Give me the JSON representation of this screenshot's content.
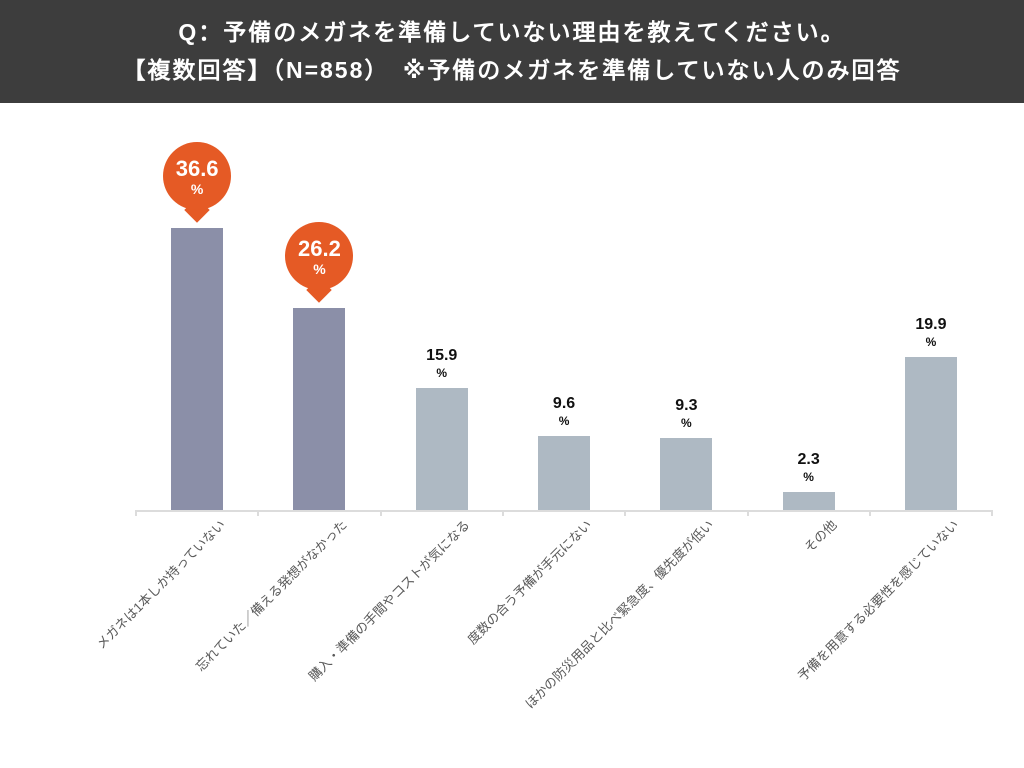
{
  "header": {
    "line1": "Q：予備のメガネを準備していない理由を教えてください。",
    "line2": "【複数回答】（N=858）　※予備のメガネを準備していない人のみ回答"
  },
  "chart_data": {
    "type": "bar",
    "title": "Q：予備のメガネを準備していない理由を教えてください。",
    "subtitle": "【複数回答】（N=858）　※予備のメガネを準備していない人のみ回答",
    "sample_size": "N=858",
    "unit": "%",
    "categories": [
      "メガネは1本しか持っていない",
      "忘れていた／備える発想がなかった",
      "購入・準備の手間やコストが気になる",
      "度数の合う予備が手元にない",
      "ほかの防災用品と比べ緊急度、優先度が低い",
      "その他",
      "予備を用意する必要性を感じていない"
    ],
    "values": [
      36.6,
      26.2,
      15.9,
      9.6,
      9.3,
      2.3,
      19.9
    ],
    "highlighted_bars": [
      0,
      1
    ],
    "ylim": [
      0,
      40
    ],
    "grid": false,
    "legend": "none",
    "colors": {
      "header_bg": "#3d3d3d",
      "header_text": "#ffffff",
      "highlight_bar": "#8b8fa8",
      "normal_bar": "#aeb9c3",
      "callout_bubble": "#e55a25",
      "callout_text": "#ffffff",
      "value_label": "#111111",
      "category_label": "#595959",
      "axis_line": "#dcdcdc"
    }
  }
}
